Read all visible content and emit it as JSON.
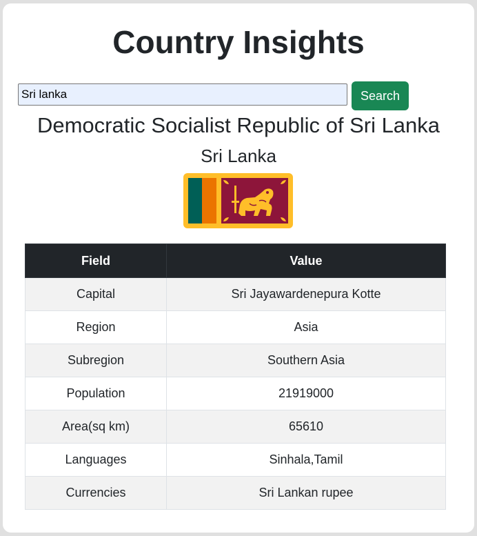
{
  "page": {
    "title": "Country Insights"
  },
  "search": {
    "value": "Sri lanka",
    "button_label": "Search"
  },
  "country": {
    "official_name": "Democratic Socialist Republic of Sri Lanka",
    "common_name": "Sri Lanka",
    "flag_icon": "sri-lanka-flag-icon",
    "flag_colors": {
      "border": "#FFBE29",
      "green": "#005F56",
      "orange": "#EB7400",
      "maroon": "#8D153A"
    }
  },
  "table": {
    "headers": [
      "Field",
      "Value"
    ],
    "rows": [
      {
        "field": "Capital",
        "value": "Sri Jayawardenepura Kotte"
      },
      {
        "field": "Region",
        "value": "Asia"
      },
      {
        "field": "Subregion",
        "value": "Southern Asia"
      },
      {
        "field": "Population",
        "value": "21919000"
      },
      {
        "field": "Area(sq km)",
        "value": "65610"
      },
      {
        "field": "Languages",
        "value": "Sinhala,Tamil"
      },
      {
        "field": "Currencies",
        "value": "Sri Lankan rupee"
      }
    ]
  },
  "colors": {
    "accent_button": "#198754",
    "table_header": "#212529"
  }
}
